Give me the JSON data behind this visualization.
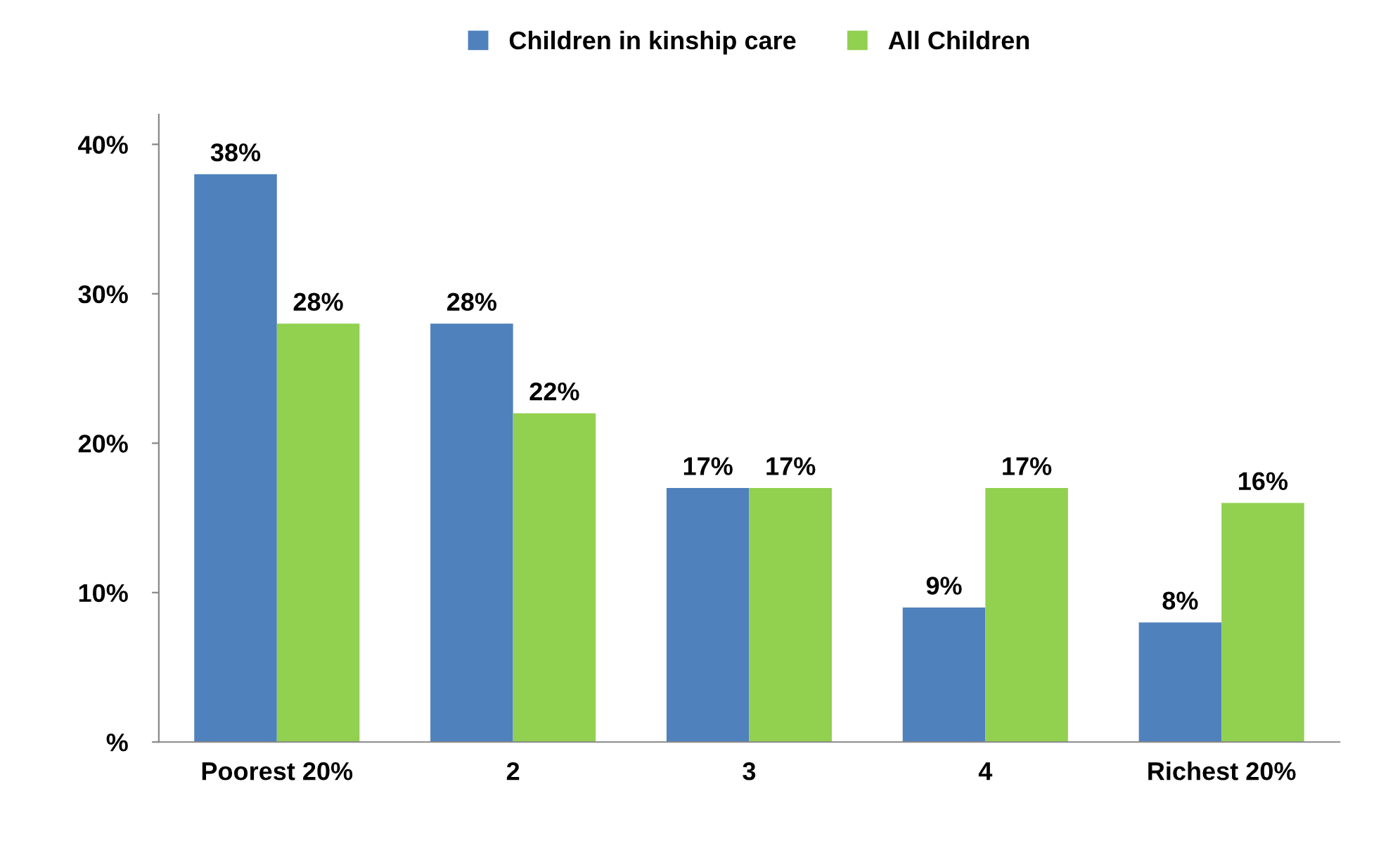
{
  "chart_data": {
    "type": "bar",
    "categories": [
      "Poorest 20%",
      "2",
      "3",
      "4",
      "Richest 20%"
    ],
    "series": [
      {
        "name": "Children in kinship care",
        "color": "#4f81bd",
        "values": [
          38,
          28,
          17,
          9,
          8
        ],
        "value_labels": [
          "38%",
          "28%",
          "17%",
          "9%",
          "8%"
        ]
      },
      {
        "name": "All Children",
        "color": "#92d050",
        "values": [
          28,
          22,
          17,
          17,
          16
        ],
        "value_labels": [
          "28%",
          "22%",
          "17%",
          "17%",
          "16%"
        ]
      }
    ],
    "ylim": [
      0,
      42
    ],
    "yticks": [
      {
        "value": 0,
        "label": "%"
      },
      {
        "value": 10,
        "label": "10%"
      },
      {
        "value": 20,
        "label": "20%"
      },
      {
        "value": 30,
        "label": "30%"
      },
      {
        "value": 40,
        "label": "40%"
      }
    ],
    "grid": false,
    "legend": "top"
  }
}
